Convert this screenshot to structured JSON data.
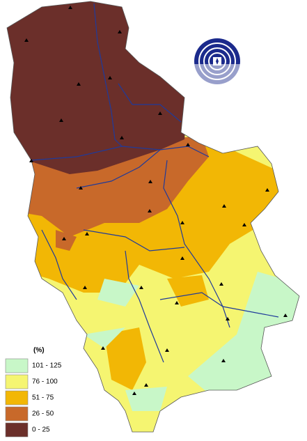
{
  "legend": {
    "title": "(%)",
    "items": [
      {
        "label": "101 - 125",
        "color": "#c8f7c8"
      },
      {
        "label": "76 - 100",
        "color": "#f5f571"
      },
      {
        "label": "51 - 75",
        "color": "#f2b705"
      },
      {
        "label": "26 - 50",
        "color": "#c8692a"
      },
      {
        "label": "0 - 25",
        "color": "#6b2f2a"
      }
    ]
  }
}
